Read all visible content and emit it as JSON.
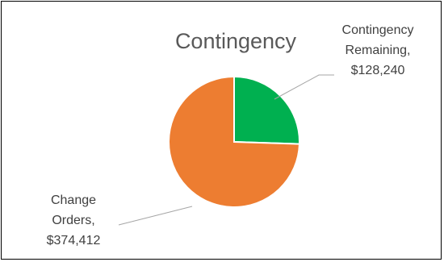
{
  "chart_data": {
    "type": "pie",
    "title": "Contingency",
    "slices": [
      {
        "name": "Contingency Remaining",
        "value": 128240,
        "value_label": "$128,240",
        "color": "#00b050"
      },
      {
        "name": "Change Orders",
        "value": 374412,
        "value_label": "$374,412",
        "color": "#ed7d31"
      }
    ],
    "data_labels": [
      {
        "lines": [
          "Contingency",
          "Remaining,",
          "$128,240"
        ]
      },
      {
        "lines": [
          "Change",
          "Orders,",
          "$374,412"
        ]
      }
    ],
    "legend": "none",
    "grid": false
  }
}
